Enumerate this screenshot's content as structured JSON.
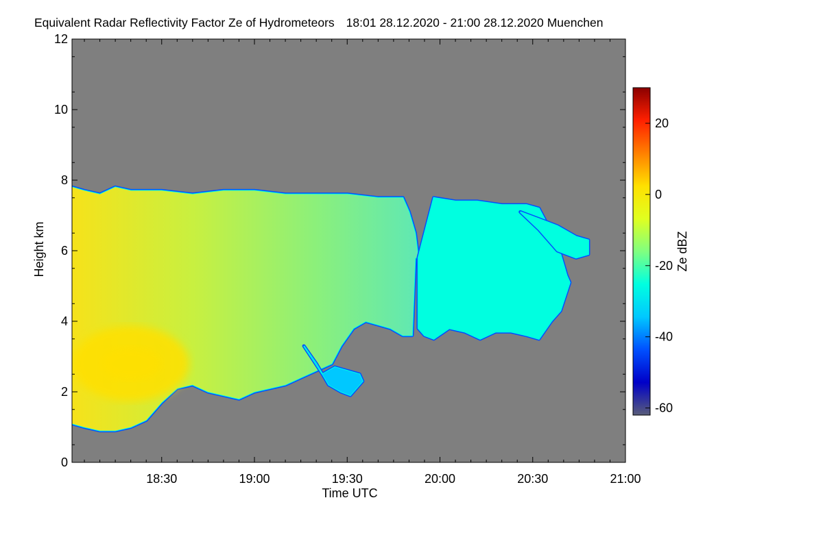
{
  "chart_data": {
    "type": "heatmap",
    "title": "Equivalent Radar Reflectivity Factor Ze of Hydrometeors",
    "period": "18:01 28.12.2020 - 21:00 28.12.2020",
    "location": "Muenchen",
    "xlabel": "Time UTC",
    "ylabel": "Height km",
    "x_unit": "minutes after 18:00 UTC",
    "xlim": [
      1,
      180
    ],
    "ylim": [
      0,
      12
    ],
    "xticks": [
      {
        "t": 30,
        "label": "18:30"
      },
      {
        "t": 60,
        "label": "19:00"
      },
      {
        "t": 90,
        "label": "19:30"
      },
      {
        "t": 120,
        "label": "20:00"
      },
      {
        "t": 150,
        "label": "20:30"
      },
      {
        "t": 180,
        "label": "21:00"
      }
    ],
    "yticks": [
      0,
      2,
      4,
      6,
      8,
      10,
      12
    ],
    "colorbar": {
      "label": "Ze dBZ",
      "range": [
        -62,
        30
      ],
      "ticks": [
        -60,
        -40,
        -20,
        0,
        20
      ],
      "tick_labels": [
        "-60",
        "-40",
        "-20",
        "0",
        "20"
      ],
      "colormap": [
        "#595d7a",
        "#0000c8",
        "#0050ff",
        "#00c8ff",
        "#00ffe0",
        "#80ff80",
        "#e0ff20",
        "#ffe000",
        "#ff8000",
        "#ff2000",
        "#8b0000"
      ]
    },
    "no_echo_color": "#7f7f7f",
    "echo_regions": [
      {
        "name": "main-cloud",
        "mean_dbz": -18,
        "top_km": [
          [
            1,
            7.8
          ],
          [
            5,
            7.7
          ],
          [
            10,
            7.6
          ],
          [
            15,
            7.8
          ],
          [
            20,
            7.7
          ],
          [
            30,
            7.7
          ],
          [
            40,
            7.6
          ],
          [
            50,
            7.7
          ],
          [
            60,
            7.7
          ],
          [
            70,
            7.6
          ],
          [
            80,
            7.6
          ],
          [
            90,
            7.6
          ],
          [
            100,
            7.5
          ],
          [
            108,
            7.5
          ],
          [
            110,
            7.1
          ],
          [
            112,
            6.5
          ],
          [
            113,
            5.8
          ]
        ],
        "base_km": [
          [
            1,
            1.1
          ],
          [
            5,
            1.0
          ],
          [
            10,
            0.9
          ],
          [
            15,
            0.9
          ],
          [
            20,
            1.0
          ],
          [
            25,
            1.2
          ],
          [
            30,
            1.7
          ],
          [
            35,
            2.1
          ],
          [
            40,
            2.2
          ],
          [
            45,
            2.0
          ],
          [
            50,
            1.9
          ],
          [
            55,
            1.8
          ],
          [
            60,
            2.0
          ],
          [
            65,
            2.1
          ],
          [
            70,
            2.2
          ],
          [
            75,
            2.4
          ],
          [
            80,
            2.6
          ],
          [
            85,
            2.8
          ],
          [
            88,
            3.3
          ],
          [
            92,
            3.8
          ],
          [
            96,
            4.0
          ],
          [
            100,
            3.9
          ],
          [
            104,
            3.8
          ],
          [
            108,
            3.6
          ],
          [
            111,
            3.6
          ],
          [
            112,
            5.8
          ]
        ]
      },
      {
        "name": "eastern-cloud",
        "mean_dbz": -22,
        "top_km": [
          [
            113,
            5.8
          ],
          [
            118,
            7.5
          ],
          [
            125,
            7.4
          ],
          [
            132,
            7.4
          ],
          [
            140,
            7.3
          ],
          [
            148,
            7.3
          ],
          [
            152,
            7.2
          ],
          [
            155,
            6.7
          ],
          [
            158,
            6.2
          ],
          [
            161,
            5.3
          ],
          [
            162,
            5.1
          ]
        ],
        "base_km": [
          [
            113,
            3.8
          ],
          [
            115,
            3.6
          ],
          [
            118,
            3.5
          ],
          [
            123,
            3.8
          ],
          [
            128,
            3.7
          ],
          [
            133,
            3.5
          ],
          [
            138,
            3.7
          ],
          [
            143,
            3.7
          ],
          [
            148,
            3.6
          ],
          [
            152,
            3.5
          ],
          [
            156,
            4.0
          ],
          [
            159,
            4.3
          ],
          [
            162,
            5.1
          ]
        ]
      },
      {
        "name": "upper-fringe",
        "mean_dbz": -28,
        "top_km": [
          [
            146,
            7.1
          ],
          [
            152,
            6.9
          ],
          [
            158,
            6.7
          ],
          [
            164,
            6.4
          ],
          [
            168,
            6.3
          ]
        ],
        "base_km": [
          [
            146,
            7.1
          ],
          [
            152,
            6.6
          ],
          [
            158,
            6.0
          ],
          [
            164,
            5.8
          ],
          [
            168,
            5.9
          ]
        ]
      },
      {
        "name": "virga-patch",
        "mean_dbz": -32,
        "top_km": [
          [
            76,
            3.3
          ],
          [
            82,
            2.5
          ],
          [
            86,
            2.7
          ],
          [
            90,
            2.6
          ],
          [
            94,
            2.5
          ],
          [
            95,
            2.3
          ]
        ],
        "base_km": [
          [
            76,
            3.3
          ],
          [
            80,
            2.8
          ],
          [
            84,
            2.2
          ],
          [
            88,
            2.0
          ],
          [
            91,
            1.9
          ],
          [
            95,
            2.3
          ]
        ]
      }
    ],
    "high_reflectivity_core": {
      "time_min": 20,
      "height_km": 2.8,
      "max_dbz": 2
    }
  }
}
